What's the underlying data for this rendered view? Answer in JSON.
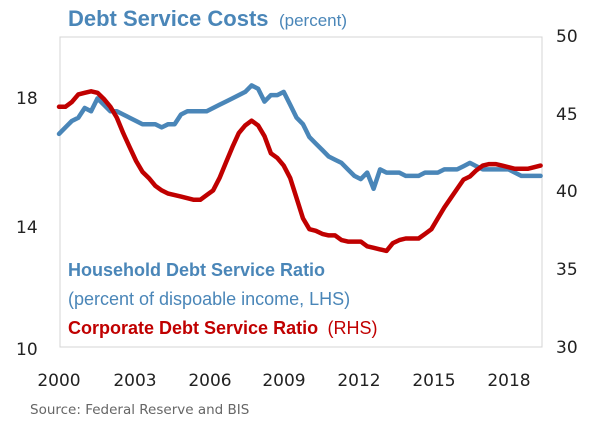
{
  "chart_data": {
    "type": "line",
    "title": "Debt Service Costs",
    "subtitle": "(percent)",
    "x_ticks": [
      "2000",
      "2003",
      "2006",
      "2009",
      "2012",
      "2015",
      "2018"
    ],
    "xlim": [
      2000,
      2019
    ],
    "y_left": {
      "ticks": [
        "10",
        "14",
        "18"
      ],
      "range": [
        10,
        19.6
      ]
    },
    "y_right": {
      "ticks": [
        "30",
        "35",
        "40",
        "45",
        "50"
      ],
      "range": [
        30,
        50
      ]
    },
    "grid": false,
    "legend": "inline-bottom-left",
    "series": [
      {
        "name": "Household Debt Service Ratio",
        "name_suffix": "(percent of dispoable income, LHS)",
        "axis": "left",
        "color": "#4a86b8",
        "x": [
          2000.0,
          2000.25,
          2000.5,
          2000.75,
          2001.0,
          2001.25,
          2001.5,
          2001.75,
          2002.0,
          2002.25,
          2002.5,
          2002.75,
          2003.0,
          2003.25,
          2003.5,
          2003.75,
          2004.0,
          2004.25,
          2004.5,
          2004.75,
          2005.0,
          2005.25,
          2005.5,
          2005.75,
          2006.0,
          2006.25,
          2006.5,
          2006.75,
          2007.0,
          2007.25,
          2007.5,
          2007.75,
          2008.0,
          2008.25,
          2008.5,
          2008.75,
          2009.0,
          2009.25,
          2009.5,
          2009.75,
          2010.0,
          2010.25,
          2010.5,
          2010.75,
          2011.0,
          2011.25,
          2011.5,
          2011.75,
          2012.0,
          2012.25,
          2012.5,
          2012.75,
          2013.0,
          2013.25,
          2013.5,
          2013.75,
          2014.0,
          2014.25,
          2014.5,
          2014.75,
          2015.0,
          2015.25,
          2015.5,
          2015.75,
          2016.0,
          2016.25,
          2016.5,
          2016.75,
          2017.0,
          2017.25,
          2017.5,
          2017.75,
          2018.0,
          2018.25,
          2018.5,
          2018.75
        ],
        "values": [
          16.6,
          16.8,
          17.0,
          17.1,
          17.4,
          17.3,
          17.7,
          17.5,
          17.3,
          17.3,
          17.2,
          17.1,
          17.0,
          16.9,
          16.9,
          16.9,
          16.8,
          16.9,
          16.9,
          17.2,
          17.3,
          17.3,
          17.3,
          17.3,
          17.4,
          17.5,
          17.6,
          17.7,
          17.8,
          17.9,
          18.1,
          18.0,
          17.6,
          17.8,
          17.8,
          17.9,
          17.5,
          17.1,
          16.9,
          16.5,
          16.3,
          16.1,
          15.9,
          15.8,
          15.7,
          15.5,
          15.3,
          15.2,
          15.4,
          14.9,
          15.5,
          15.4,
          15.4,
          15.4,
          15.3,
          15.3,
          15.3,
          15.4,
          15.4,
          15.4,
          15.5,
          15.5,
          15.5,
          15.6,
          15.7,
          15.6,
          15.5,
          15.5,
          15.5,
          15.5,
          15.5,
          15.4,
          15.3,
          15.3,
          15.3,
          15.3
        ]
      },
      {
        "name": "Corporate Debt Service Ratio",
        "name_suffix": "(RHS)",
        "axis": "right",
        "color": "#c00000",
        "x": [
          2000.0,
          2000.25,
          2000.5,
          2000.75,
          2001.0,
          2001.25,
          2001.5,
          2001.75,
          2002.0,
          2002.25,
          2002.5,
          2002.75,
          2003.0,
          2003.25,
          2003.5,
          2003.75,
          2004.0,
          2004.25,
          2004.5,
          2004.75,
          2005.0,
          2005.25,
          2005.5,
          2005.75,
          2006.0,
          2006.25,
          2006.5,
          2006.75,
          2007.0,
          2007.25,
          2007.5,
          2007.75,
          2008.0,
          2008.25,
          2008.5,
          2008.75,
          2009.0,
          2009.25,
          2009.5,
          2009.75,
          2010.0,
          2010.25,
          2010.5,
          2010.75,
          2011.0,
          2011.25,
          2011.5,
          2011.75,
          2012.0,
          2012.25,
          2012.5,
          2012.75,
          2013.0,
          2013.25,
          2013.5,
          2013.75,
          2014.0,
          2014.25,
          2014.5,
          2014.75,
          2015.0,
          2015.25,
          2015.5,
          2015.75,
          2016.0,
          2016.25,
          2016.5,
          2016.75,
          2017.0,
          2017.25,
          2017.5,
          2017.75,
          2018.0,
          2018.25,
          2018.5,
          2018.75
        ],
        "values": [
          45.5,
          45.5,
          45.8,
          46.3,
          46.4,
          46.5,
          46.4,
          46.0,
          45.5,
          44.8,
          43.8,
          42.9,
          42.0,
          41.3,
          40.9,
          40.4,
          40.1,
          39.9,
          39.8,
          39.7,
          39.6,
          39.5,
          39.5,
          39.8,
          40.1,
          40.9,
          41.9,
          42.9,
          43.8,
          44.3,
          44.6,
          44.3,
          43.6,
          42.5,
          42.2,
          41.7,
          40.9,
          39.6,
          38.3,
          37.6,
          37.5,
          37.3,
          37.2,
          37.2,
          36.9,
          36.8,
          36.8,
          36.8,
          36.5,
          36.4,
          36.3,
          36.2,
          36.7,
          36.9,
          37.0,
          37.0,
          37.0,
          37.3,
          37.6,
          38.3,
          39.0,
          39.6,
          40.2,
          40.8,
          41.0,
          41.4,
          41.7,
          41.8,
          41.8,
          41.7,
          41.6,
          41.5,
          41.5,
          41.5,
          41.6,
          41.7
        ]
      }
    ],
    "source": "Source: Federal Reserve and BIS"
  }
}
